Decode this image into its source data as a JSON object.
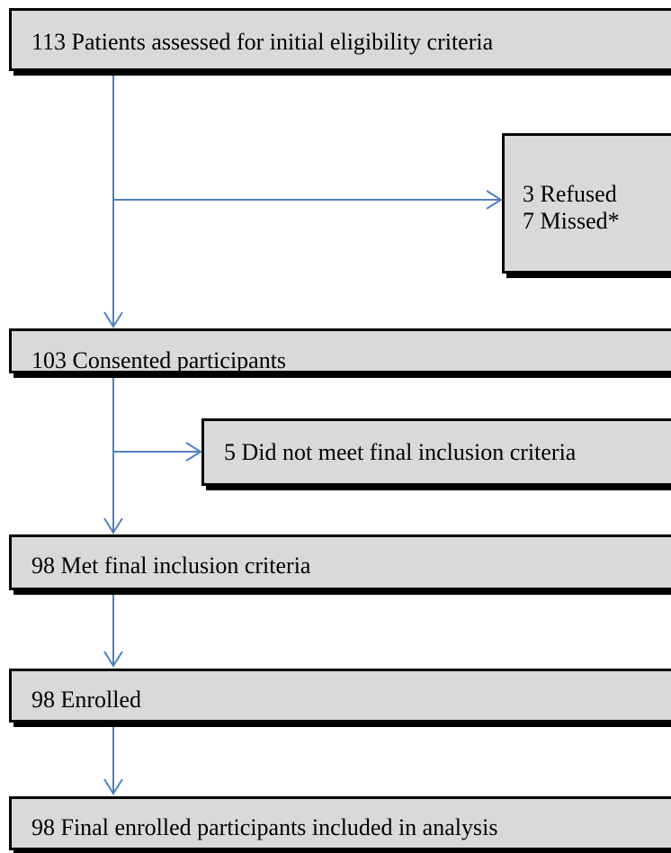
{
  "flowchart": {
    "assessed": "113 Patients assessed for initial eligibility criteria",
    "excluded": [
      "3 Refused",
      "7 Missed*"
    ],
    "consented": "103 Consented participants",
    "not_met": "5 Did not meet final inclusion criteria",
    "met": "98 Met final inclusion criteria",
    "enrolled": "98 Enrolled",
    "final": "98 Final enrolled participants included in analysis"
  },
  "colors": {
    "box_fill": "#d9d9d9",
    "box_border": "#000000",
    "connector": "#4f81bd"
  }
}
